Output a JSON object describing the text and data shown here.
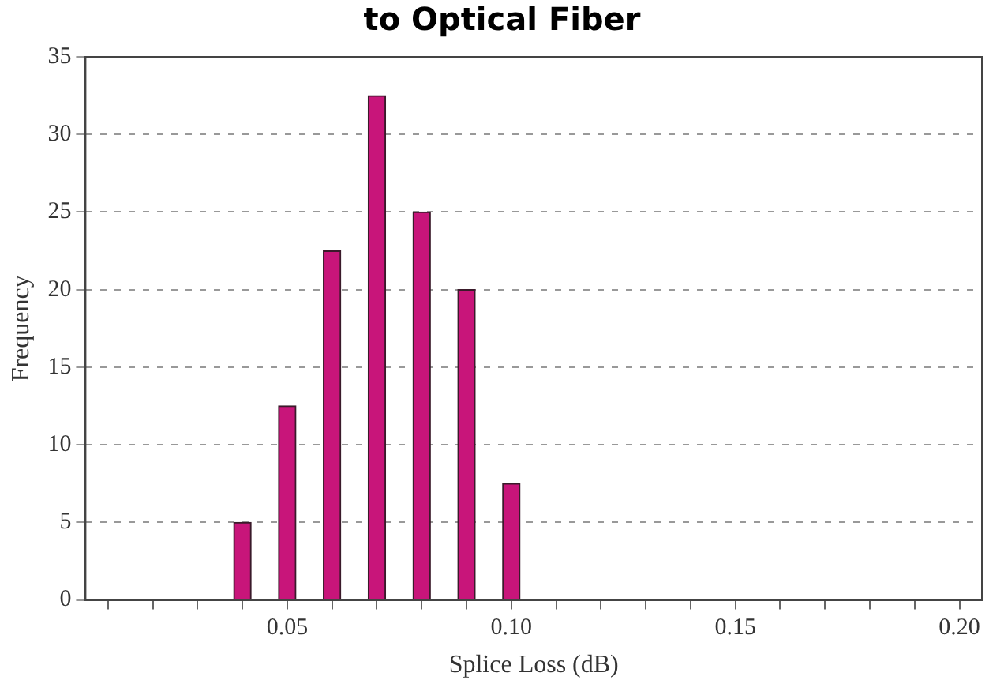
{
  "chart_data": {
    "type": "bar",
    "title": "to Optical Fiber",
    "xlabel": "Splice Loss (dB)",
    "ylabel": "Frequency",
    "x": [
      0.04,
      0.05,
      0.06,
      0.07,
      0.08,
      0.09,
      0.1
    ],
    "values": [
      5,
      12.5,
      22.5,
      32.5,
      25,
      20,
      7.5
    ],
    "color": "#c8157a",
    "xlim": [
      0.005,
      0.205
    ],
    "xticks": [
      {
        "value": 0.01,
        "label": null
      },
      {
        "value": 0.02,
        "label": null
      },
      {
        "value": 0.03,
        "label": null
      },
      {
        "value": 0.04,
        "label": null
      },
      {
        "value": 0.05,
        "label": "0.05"
      },
      {
        "value": 0.06,
        "label": null
      },
      {
        "value": 0.07,
        "label": null
      },
      {
        "value": 0.08,
        "label": null
      },
      {
        "value": 0.09,
        "label": null
      },
      {
        "value": 0.1,
        "label": "0.10"
      },
      {
        "value": 0.11,
        "label": null
      },
      {
        "value": 0.12,
        "label": null
      },
      {
        "value": 0.13,
        "label": null
      },
      {
        "value": 0.14,
        "label": null
      },
      {
        "value": 0.15,
        "label": "0.15"
      },
      {
        "value": 0.16,
        "label": null
      },
      {
        "value": 0.17,
        "label": null
      },
      {
        "value": 0.18,
        "label": null
      },
      {
        "value": 0.19,
        "label": null
      },
      {
        "value": 0.2,
        "label": "0.20"
      }
    ],
    "ylim": [
      0,
      35
    ],
    "yticks": [
      0,
      5,
      10,
      15,
      20,
      25,
      30,
      35
    ],
    "grid": "y",
    "legend": false
  }
}
